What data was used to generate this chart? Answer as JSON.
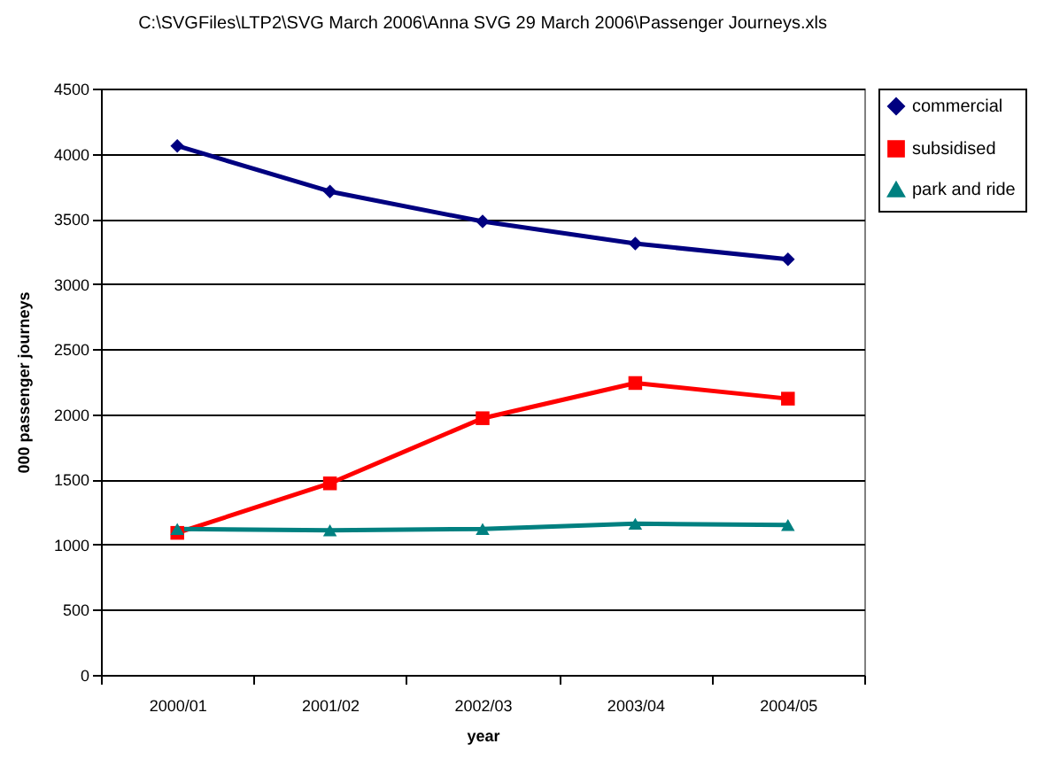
{
  "chart_data": {
    "type": "line",
    "title": "C:\\SVGFiles\\LTP2\\SVG March 2006\\Anna SVG 29 March 2006\\Passenger Journeys.xls",
    "xlabel": "year",
    "ylabel": "000 passenger journeys",
    "categories": [
      "2000/01",
      "2001/02",
      "2002/03",
      "2003/04",
      "2004/05"
    ],
    "series": [
      {
        "name": "commercial",
        "color": "#000080",
        "marker": "diamond",
        "values": [
          4060,
          3710,
          3480,
          3310,
          3190
        ]
      },
      {
        "name": "subsidised",
        "color": "#ff0000",
        "marker": "square",
        "values": [
          1090,
          1470,
          1970,
          2240,
          2120
        ]
      },
      {
        "name": "park and ride",
        "color": "#008080",
        "marker": "triangle",
        "values": [
          1120,
          1110,
          1120,
          1160,
          1150
        ]
      }
    ],
    "ylim": [
      0,
      4500
    ],
    "yticks": [
      0,
      500,
      1000,
      1500,
      2000,
      2500,
      3000,
      3500,
      4000,
      4500
    ],
    "grid": "y",
    "legend": "right",
    "line_style": "solid"
  }
}
